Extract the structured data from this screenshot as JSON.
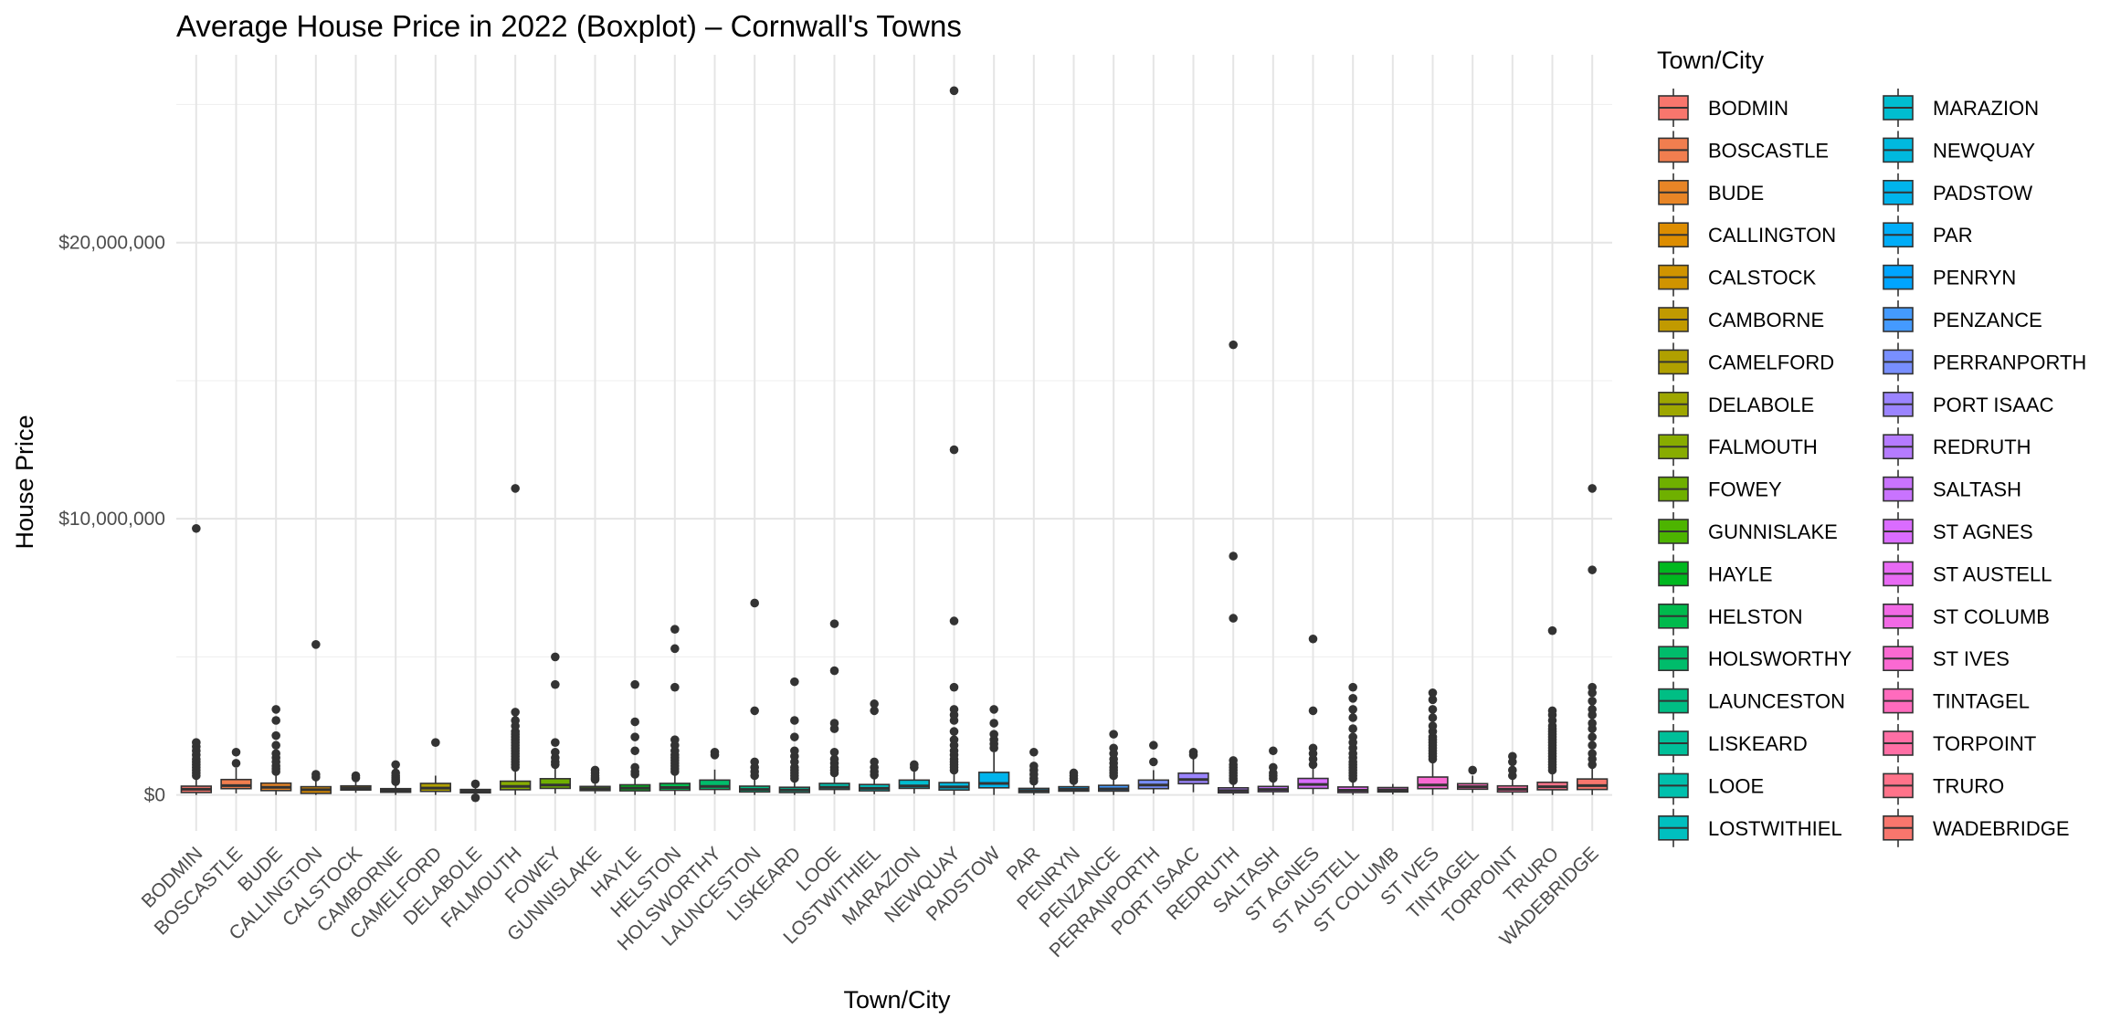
{
  "chart_data": {
    "type": "boxplot",
    "title": "Average House Price in 2022 (Boxplot) – Cornwall's Towns",
    "xlabel": "Town/City",
    "ylabel": "House Price",
    "ylim": [
      -1300000,
      26800000
    ],
    "yticks": [
      0,
      10000000,
      20000000
    ],
    "ytick_labels": [
      "$0",
      "$10,000,000",
      "$20,000,000"
    ],
    "grid": true,
    "legend": {
      "title": "Town/City",
      "position": "right",
      "columns": 2
    },
    "categories": [
      "BODMIN",
      "BOSCASTLE",
      "BUDE",
      "CALLINGTON",
      "CALSTOCK",
      "CAMBORNE",
      "CAMELFORD",
      "DELABOLE",
      "FALMOUTH",
      "FOWEY",
      "GUNNISLAKE",
      "HAYLE",
      "HELSTON",
      "HOLSWORTHY",
      "LAUNCESTON",
      "LISKEARD",
      "LOOE",
      "LOSTWITHIEL",
      "MARAZION",
      "NEWQUAY",
      "PADSTOW",
      "PAR",
      "PENRYN",
      "PENZANCE",
      "PERRANPORTH",
      "PORT ISAAC",
      "REDRUTH",
      "SALTASH",
      "ST AGNES",
      "ST AUSTELL",
      "ST COLUMB",
      "ST IVES",
      "TINTAGEL",
      "TORPOINT",
      "TRURO",
      "WADEBRIDGE"
    ],
    "colors": [
      "#F8766D",
      "#F17E4F",
      "#E88526",
      "#DD8D00",
      "#D09400",
      "#C19A00",
      "#B0A000",
      "#9EA700",
      "#88AC00",
      "#6FB000",
      "#4DB400",
      "#00B81F",
      "#00BA4D",
      "#00BC6B",
      "#00BE84",
      "#00BF99",
      "#00C0AD",
      "#00BFBF",
      "#00BDD0",
      "#00B9DF",
      "#00B4EC",
      "#00ADF8",
      "#00A5FF",
      "#449AFF",
      "#788FFF",
      "#9B84FF",
      "#B57BFF",
      "#C973FF",
      "#DA6CFF",
      "#E86AF4",
      "#F269E5",
      "#FA69D2",
      "#FF6BBD",
      "#FF6FA5",
      "#FF738A",
      "#F8766D"
    ],
    "series": [
      {
        "name": "BODMIN",
        "q1": 90000,
        "median": 210000,
        "q3": 320000,
        "whisker_low": 0,
        "whisker_high": 640000,
        "outliers": [
          700000,
          800000,
          900000,
          1000000,
          1100000,
          1200000,
          1300000,
          1450000,
          1600000,
          1750000,
          1900000,
          9650000
        ]
      },
      {
        "name": "BOSCASTLE",
        "q1": 230000,
        "median": 340000,
        "q3": 560000,
        "whisker_low": 60000,
        "whisker_high": 980000,
        "outliers": [
          1150000,
          1550000
        ]
      },
      {
        "name": "BUDE",
        "q1": 160000,
        "median": 280000,
        "q3": 430000,
        "whisker_low": 0,
        "whisker_high": 800000,
        "outliers": [
          850000,
          950000,
          1050000,
          1200000,
          1350000,
          1500000,
          1800000,
          2150000,
          2700000,
          3100000
        ]
      },
      {
        "name": "CALLINGTON",
        "q1": 60000,
        "median": 190000,
        "q3": 300000,
        "whisker_low": 0,
        "whisker_high": 600000,
        "outliers": [
          650000,
          750000,
          5450000
        ]
      },
      {
        "name": "CALSTOCK",
        "q1": 180000,
        "median": 250000,
        "q3": 330000,
        "whisker_low": 80000,
        "whisker_high": 550000,
        "outliers": [
          620000,
          700000
        ]
      },
      {
        "name": "CAMBORNE",
        "q1": 100000,
        "median": 160000,
        "q3": 230000,
        "whisker_low": 0,
        "whisker_high": 420000,
        "outliers": [
          480000,
          550000,
          620000,
          700000,
          800000,
          1100000
        ]
      },
      {
        "name": "CAMELFORD",
        "q1": 130000,
        "median": 250000,
        "q3": 420000,
        "whisker_low": 0,
        "whisker_high": 700000,
        "outliers": [
          1900000
        ]
      },
      {
        "name": "DELABOLE",
        "q1": 80000,
        "median": 140000,
        "q3": 200000,
        "whisker_low": 0,
        "whisker_high": 300000,
        "outliers": [
          400000,
          -100000
        ]
      },
      {
        "name": "FALMOUTH",
        "q1": 190000,
        "median": 310000,
        "q3": 500000,
        "whisker_low": 0,
        "whisker_high": 950000,
        "outliers": [
          1000000,
          1100000,
          1200000,
          1300000,
          1400000,
          1500000,
          1600000,
          1700000,
          1800000,
          1900000,
          2000000,
          2100000,
          2200000,
          2300000,
          2500000,
          2700000,
          3000000,
          11100000
        ]
      },
      {
        "name": "FOWEY",
        "q1": 240000,
        "median": 360000,
        "q3": 590000,
        "whisker_low": 50000,
        "whisker_high": 1000000,
        "outliers": [
          1100000,
          1200000,
          1350000,
          1550000,
          1900000,
          4000000,
          5000000
        ]
      },
      {
        "name": "GUNNISLAKE",
        "q1": 160000,
        "median": 230000,
        "q3": 310000,
        "whisker_low": 50000,
        "whisker_high": 500000,
        "outliers": [
          560000,
          620000,
          700000,
          800000,
          900000
        ]
      },
      {
        "name": "HAYLE",
        "q1": 150000,
        "median": 250000,
        "q3": 370000,
        "whisker_low": 0,
        "whisker_high": 680000,
        "outliers": [
          750000,
          850000,
          1000000,
          1600000,
          2100000,
          2650000,
          4000000
        ]
      },
      {
        "name": "HELSTON",
        "q1": 170000,
        "median": 270000,
        "q3": 420000,
        "whisker_low": 0,
        "whisker_high": 780000,
        "outliers": [
          850000,
          950000,
          1050000,
          1150000,
          1250000,
          1350000,
          1450000,
          1600000,
          1800000,
          2000000,
          3900000,
          5300000,
          6000000
        ]
      },
      {
        "name": "HOLSWORTHY",
        "q1": 200000,
        "median": 310000,
        "q3": 540000,
        "whisker_low": 30000,
        "whisker_high": 920000,
        "outliers": [
          1450000,
          1550000
        ]
      },
      {
        "name": "LAUNCESTON",
        "q1": 110000,
        "median": 200000,
        "q3": 320000,
        "whisker_low": 0,
        "whisker_high": 620000,
        "outliers": [
          700000,
          850000,
          1000000,
          1200000,
          3050000,
          6950000
        ]
      },
      {
        "name": "LISKEARD",
        "q1": 90000,
        "median": 180000,
        "q3": 280000,
        "whisker_low": 0,
        "whisker_high": 540000,
        "outliers": [
          600000,
          700000,
          800000,
          900000,
          1000000,
          1200000,
          1400000,
          1600000,
          2100000,
          2700000,
          4100000
        ]
      },
      {
        "name": "LOOE",
        "q1": 200000,
        "median": 280000,
        "q3": 420000,
        "whisker_low": 30000,
        "whisker_high": 720000,
        "outliers": [
          800000,
          900000,
          1000000,
          1150000,
          1300000,
          1550000,
          2400000,
          2600000,
          4500000,
          6200000
        ]
      },
      {
        "name": "LOSTWITHIEL",
        "q1": 150000,
        "median": 240000,
        "q3": 380000,
        "whisker_low": 30000,
        "whisker_high": 640000,
        "outliers": [
          720000,
          850000,
          1000000,
          1200000,
          3050000,
          3300000
        ]
      },
      {
        "name": "MARAZION",
        "q1": 240000,
        "median": 330000,
        "q3": 540000,
        "whisker_low": 50000,
        "whisker_high": 900000,
        "outliers": [
          1000000,
          1100000
        ]
      },
      {
        "name": "NEWQUAY",
        "q1": 180000,
        "median": 290000,
        "q3": 450000,
        "whisker_low": 0,
        "whisker_high": 850000,
        "outliers": [
          900000,
          1000000,
          1100000,
          1200000,
          1300000,
          1450000,
          1600000,
          1800000,
          2000000,
          2300000,
          2700000,
          2900000,
          3100000,
          3900000,
          6300000,
          12500000,
          25500000
        ]
      },
      {
        "name": "PADSTOW",
        "q1": 260000,
        "median": 420000,
        "q3": 820000,
        "whisker_low": 0,
        "whisker_high": 1550000,
        "outliers": [
          1700000,
          1850000,
          2000000,
          2200000,
          2600000,
          3100000
        ]
      },
      {
        "name": "PAR",
        "q1": 90000,
        "median": 160000,
        "q3": 240000,
        "whisker_low": 0,
        "whisker_high": 420000,
        "outliers": [
          500000,
          600000,
          750000,
          900000,
          1050000,
          1550000
        ]
      },
      {
        "name": "PENRYN",
        "q1": 140000,
        "median": 210000,
        "q3": 300000,
        "whisker_low": 30000,
        "whisker_high": 460000,
        "outliers": [
          520000,
          600000,
          700000,
          800000
        ]
      },
      {
        "name": "PENZANCE",
        "q1": 140000,
        "median": 220000,
        "q3": 350000,
        "whisker_low": 0,
        "whisker_high": 650000,
        "outliers": [
          700000,
          800000,
          900000,
          1000000,
          1150000,
          1300000,
          1500000,
          1700000,
          2200000
        ]
      },
      {
        "name": "PERRANPORTH",
        "q1": 230000,
        "median": 360000,
        "q3": 540000,
        "whisker_low": 50000,
        "whisker_high": 900000,
        "outliers": [
          1200000,
          1800000
        ]
      },
      {
        "name": "PORT ISAAC",
        "q1": 410000,
        "median": 560000,
        "q3": 790000,
        "whisker_low": 100000,
        "whisker_high": 1300000,
        "outliers": [
          1450000,
          1550000
        ]
      },
      {
        "name": "REDRUTH",
        "q1": 80000,
        "median": 160000,
        "q3": 260000,
        "whisker_low": 0,
        "whisker_high": 450000,
        "outliers": [
          520000,
          600000,
          700000,
          800000,
          900000,
          1000000,
          1100000,
          1250000,
          6400000,
          8650000,
          16300000
        ]
      },
      {
        "name": "SALTASH",
        "q1": 120000,
        "median": 200000,
        "q3": 310000,
        "whisker_low": 0,
        "whisker_high": 560000,
        "outliers": [
          600000,
          700000,
          800000,
          1000000,
          1600000
        ]
      },
      {
        "name": "ST AGNES",
        "q1": 240000,
        "median": 380000,
        "q3": 600000,
        "whisker_low": 30000,
        "whisker_high": 1000000,
        "outliers": [
          1100000,
          1300000,
          1500000,
          1700000,
          3050000,
          5650000
        ]
      },
      {
        "name": "ST AUSTELL",
        "q1": 90000,
        "median": 170000,
        "q3": 290000,
        "whisker_low": 0,
        "whisker_high": 560000,
        "outliers": [
          600000,
          700000,
          800000,
          900000,
          1000000,
          1100000,
          1200000,
          1350000,
          1500000,
          1700000,
          1900000,
          2100000,
          2400000,
          2800000,
          3100000,
          3500000,
          3900000
        ]
      },
      {
        "name": "ST COLUMB",
        "q1": 110000,
        "median": 180000,
        "q3": 270000,
        "whisker_low": 20000,
        "whisker_high": 400000,
        "outliers": []
      },
      {
        "name": "ST IVES",
        "q1": 230000,
        "median": 360000,
        "q3": 650000,
        "whisker_low": 0,
        "whisker_high": 1250000,
        "outliers": [
          1300000,
          1400000,
          1500000,
          1600000,
          1700000,
          1800000,
          1900000,
          2000000,
          2100000,
          2300000,
          2500000,
          2800000,
          3100000,
          3450000,
          3700000
        ]
      },
      {
        "name": "TINTAGEL",
        "q1": 210000,
        "median": 300000,
        "q3": 410000,
        "whisker_low": 80000,
        "whisker_high": 700000,
        "outliers": [
          900000
        ]
      },
      {
        "name": "TORPOINT",
        "q1": 110000,
        "median": 210000,
        "q3": 330000,
        "whisker_low": 0,
        "whisker_high": 600000,
        "outliers": [
          700000,
          900000,
          1200000,
          1400000
        ]
      },
      {
        "name": "TRURO",
        "q1": 190000,
        "median": 300000,
        "q3": 460000,
        "whisker_low": 0,
        "whisker_high": 850000,
        "outliers": [
          900000,
          1000000,
          1100000,
          1200000,
          1300000,
          1400000,
          1500000,
          1600000,
          1700000,
          1800000,
          1900000,
          2000000,
          2100000,
          2200000,
          2300000,
          2400000,
          2500000,
          2700000,
          2900000,
          3050000,
          5950000
        ]
      },
      {
        "name": "WADEBRIDGE",
        "q1": 200000,
        "median": 340000,
        "q3": 580000,
        "whisker_low": 0,
        "whisker_high": 1050000,
        "outliers": [
          1100000,
          1300000,
          1500000,
          1800000,
          2100000,
          2400000,
          2600000,
          2900000,
          3100000,
          3400000,
          3700000,
          3900000,
          8150000,
          11100000
        ]
      }
    ]
  }
}
